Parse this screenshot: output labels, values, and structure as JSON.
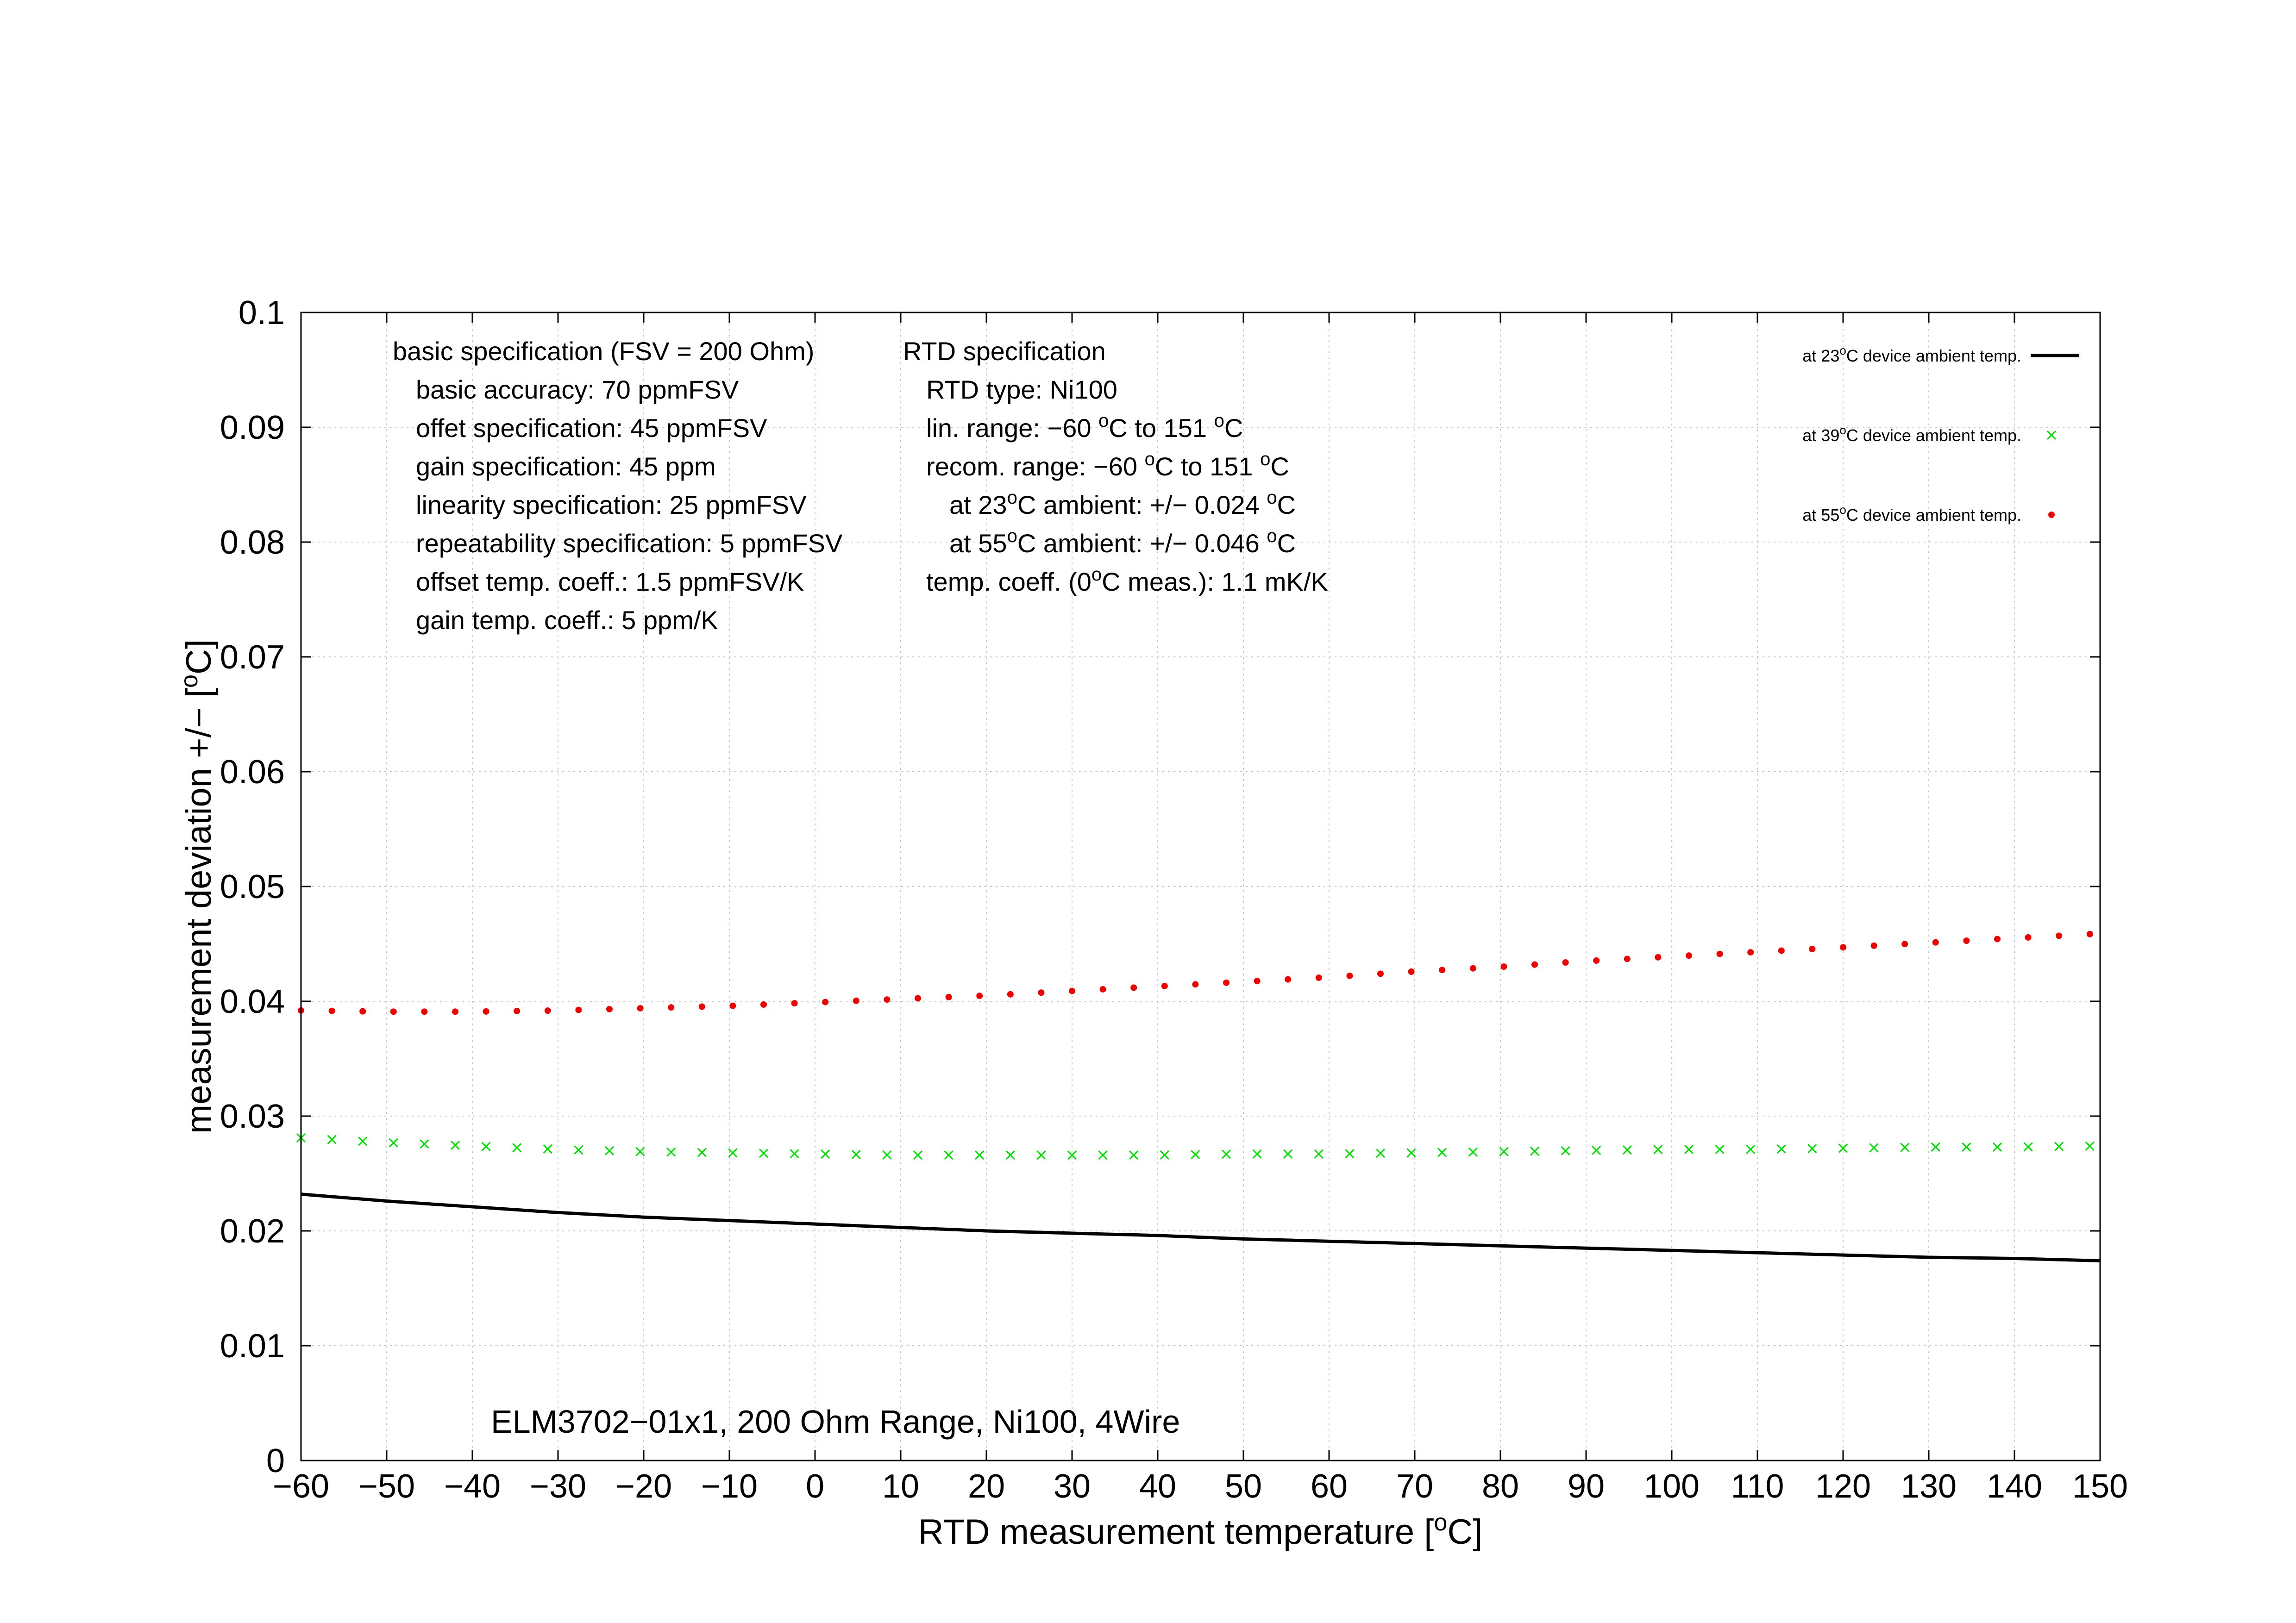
{
  "chart_data": {
    "type": "scatter",
    "title": "",
    "subtitle": "ELM3702−01x1, 200 Ohm Range, Ni100, 4Wire",
    "xlabel": {
      "main": "RTD measurement temperature [",
      "sup": "o",
      "tail": "C]"
    },
    "ylabel": {
      "main": "measurement deviation +/− [",
      "sup": "o",
      "tail": "C]"
    },
    "xlim": [
      -60,
      150
    ],
    "ylim": [
      0,
      0.1
    ],
    "grid": true,
    "legend_position": "top-right",
    "x_ticks": [
      -60,
      -50,
      -40,
      -30,
      -20,
      -10,
      0,
      10,
      20,
      30,
      40,
      50,
      60,
      70,
      80,
      90,
      100,
      110,
      120,
      130,
      140,
      150
    ],
    "x_tick_labels": [
      "−60",
      "−50",
      "−40",
      "−30",
      "−20",
      "−10",
      "0",
      "10",
      "20",
      "30",
      "40",
      "50",
      "60",
      "70",
      "80",
      "90",
      "100",
      "110",
      "120",
      "130",
      "140",
      "150"
    ],
    "y_ticks": [
      0,
      0.01,
      0.02,
      0.03,
      0.04,
      0.05,
      0.06,
      0.07,
      0.08,
      0.09,
      0.1
    ],
    "y_tick_labels": [
      "0",
      "0.01",
      "0.02",
      "0.03",
      "0.04",
      "0.05",
      "0.06",
      "0.07",
      "0.08",
      "0.09",
      "0.1"
    ],
    "series": [
      {
        "name": {
          "pre": "at 23",
          "sup": "o",
          "post": "C device ambient temp."
        },
        "style": "line",
        "color": "#000000",
        "x": [
          -60,
          -50,
          -40,
          -30,
          -20,
          -10,
          0,
          10,
          20,
          30,
          40,
          50,
          60,
          70,
          80,
          90,
          100,
          110,
          120,
          130,
          140,
          150
        ],
        "y": [
          0.0232,
          0.0226,
          0.0221,
          0.0216,
          0.0212,
          0.0209,
          0.0206,
          0.0203,
          0.02,
          0.0198,
          0.0196,
          0.0193,
          0.0191,
          0.0189,
          0.0187,
          0.0185,
          0.0183,
          0.0181,
          0.0179,
          0.0177,
          0.0176,
          0.0174
        ]
      },
      {
        "name": {
          "pre": "at 39",
          "sup": "o",
          "post": "C device ambient temp."
        },
        "style": "cross",
        "color": "#00dd00",
        "x": [
          -60,
          -50,
          -40,
          -30,
          -20,
          -10,
          0,
          10,
          20,
          30,
          40,
          50,
          60,
          70,
          80,
          90,
          100,
          110,
          120,
          130,
          140,
          150
        ],
        "y": [
          0.0281,
          0.0277,
          0.0274,
          0.0271,
          0.0269,
          0.0268,
          0.0267,
          0.0266,
          0.0266,
          0.0266,
          0.0266,
          0.0267,
          0.0267,
          0.0268,
          0.0269,
          0.027,
          0.0271,
          0.0271,
          0.0272,
          0.0273,
          0.0273,
          0.0274
        ]
      },
      {
        "name": {
          "pre": "at 55",
          "sup": "o",
          "post": "C device ambient temp."
        },
        "style": "dot",
        "color": "#ee0000",
        "x": [
          -60,
          -50,
          -40,
          -30,
          -20,
          -10,
          0,
          10,
          20,
          30,
          40,
          50,
          60,
          70,
          80,
          90,
          100,
          110,
          120,
          130,
          140,
          150
        ],
        "y": [
          0.0392,
          0.0391,
          0.0391,
          0.0392,
          0.0394,
          0.0396,
          0.0399,
          0.0402,
          0.0405,
          0.0409,
          0.0413,
          0.0417,
          0.0421,
          0.0426,
          0.043,
          0.0435,
          0.0439,
          0.0443,
          0.0447,
          0.0451,
          0.0455,
          0.0459
        ]
      }
    ],
    "annotations": {
      "basic_spec": [
        {
          "indent": false,
          "parts": [
            {
              "t": "basic specification (FSV = 200 Ohm)"
            }
          ]
        },
        {
          "indent": true,
          "parts": [
            {
              "t": "basic accuracy: 70 ppmFSV"
            }
          ]
        },
        {
          "indent": true,
          "parts": [
            {
              "t": "offet specification: 45 ppmFSV"
            }
          ]
        },
        {
          "indent": true,
          "parts": [
            {
              "t": "gain specification: 45 ppm"
            }
          ]
        },
        {
          "indent": true,
          "parts": [
            {
              "t": "linearity specification: 25 ppmFSV"
            }
          ]
        },
        {
          "indent": true,
          "parts": [
            {
              "t": "repeatability specification: 5 ppmFSV"
            }
          ]
        },
        {
          "indent": true,
          "parts": [
            {
              "t": "offset temp. coeff.: 1.5 ppmFSV/K"
            }
          ]
        },
        {
          "indent": true,
          "parts": [
            {
              "t": "gain temp. coeff.: 5 ppm/K"
            }
          ]
        }
      ],
      "rtd_spec": [
        {
          "indent": 0,
          "parts": [
            {
              "t": "RTD specification"
            }
          ]
        },
        {
          "indent": 1,
          "parts": [
            {
              "t": "RTD type: Ni100"
            }
          ]
        },
        {
          "indent": 1,
          "parts": [
            {
              "t": "lin. range: −60 "
            },
            {
              "t": "o",
              "sup": true
            },
            {
              "t": "C to 151 "
            },
            {
              "t": "o",
              "sup": true
            },
            {
              "t": "C"
            }
          ]
        },
        {
          "indent": 1,
          "parts": [
            {
              "t": "recom. range: −60 "
            },
            {
              "t": "o",
              "sup": true
            },
            {
              "t": "C to 151 "
            },
            {
              "t": "o",
              "sup": true
            },
            {
              "t": "C"
            }
          ]
        },
        {
          "indent": 2,
          "parts": [
            {
              "t": "at 23"
            },
            {
              "t": "o",
              "sup": true
            },
            {
              "t": "C ambient: +/− 0.024 "
            },
            {
              "t": "o",
              "sup": true
            },
            {
              "t": "C"
            }
          ]
        },
        {
          "indent": 2,
          "parts": [
            {
              "t": "at 55"
            },
            {
              "t": "o",
              "sup": true
            },
            {
              "t": "C ambient: +/− 0.046 "
            },
            {
              "t": "o",
              "sup": true
            },
            {
              "t": "C"
            }
          ]
        },
        {
          "indent": 1,
          "parts": [
            {
              "t": "temp. coeff. (0"
            },
            {
              "t": "o",
              "sup": true
            },
            {
              "t": "C meas.): 1.1 mK/K"
            }
          ]
        }
      ]
    }
  }
}
